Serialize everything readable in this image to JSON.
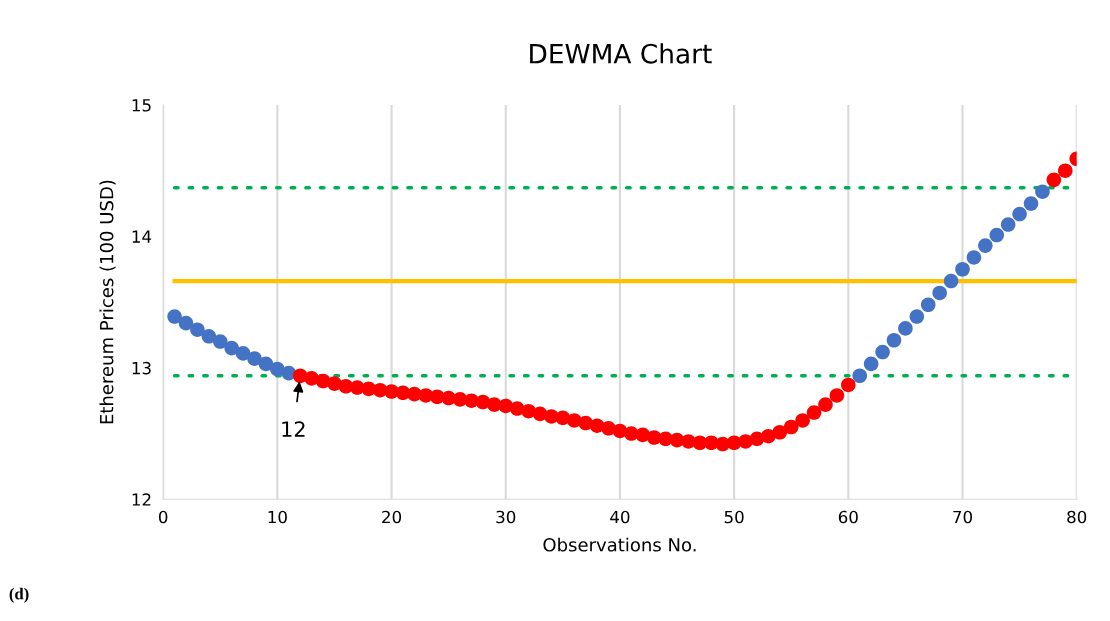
{
  "chart_data": {
    "type": "scatter",
    "title": "DEWMA Chart",
    "xlabel": "Observations No.",
    "ylabel": "Ethereum Prices (100 USD)",
    "xlim": [
      0,
      80
    ],
    "xticks": [
      0,
      10,
      20,
      30,
      40,
      50,
      60,
      70,
      80
    ],
    "ylim": [
      12,
      15
    ],
    "yticks": [
      12,
      13,
      14,
      15
    ],
    "grid": "x",
    "legend": false,
    "marker": "circle",
    "series": [
      {
        "color": "#4472c4",
        "x": [
          1,
          2,
          3,
          4,
          5,
          6,
          7,
          8,
          9,
          10,
          11
        ],
        "values": [
          13.39,
          13.34,
          13.29,
          13.24,
          13.2,
          13.15,
          13.11,
          13.07,
          13.03,
          12.99,
          12.96
        ]
      },
      {
        "color": "#ff0000",
        "x": [
          12,
          13,
          14,
          15,
          16,
          17,
          18,
          19,
          20,
          21,
          22,
          23,
          24,
          25,
          26,
          27,
          28,
          29,
          30,
          31,
          32,
          33,
          34,
          35,
          36,
          37,
          38,
          39,
          40,
          41,
          42,
          43,
          44,
          45,
          46,
          47,
          48,
          49,
          50,
          51,
          52,
          53,
          54,
          55,
          56,
          57,
          58,
          59,
          60
        ],
        "values": [
          12.94,
          12.92,
          12.9,
          12.88,
          12.86,
          12.85,
          12.84,
          12.83,
          12.82,
          12.81,
          12.8,
          12.79,
          12.78,
          12.77,
          12.76,
          12.75,
          12.74,
          12.72,
          12.71,
          12.69,
          12.67,
          12.65,
          12.63,
          12.62,
          12.6,
          12.58,
          12.56,
          12.54,
          12.52,
          12.5,
          12.49,
          12.47,
          12.46,
          12.45,
          12.44,
          12.43,
          12.43,
          12.42,
          12.43,
          12.44,
          12.46,
          12.48,
          12.51,
          12.55,
          12.6,
          12.66,
          12.72,
          12.79,
          12.87
        ]
      },
      {
        "color": "#4472c4",
        "x": [
          61,
          62,
          63,
          64,
          65,
          66,
          67,
          68,
          69,
          70,
          71,
          72,
          73,
          74,
          75,
          76,
          77
        ],
        "values": [
          12.94,
          13.03,
          13.12,
          13.21,
          13.3,
          13.39,
          13.48,
          13.57,
          13.66,
          13.75,
          13.84,
          13.93,
          14.01,
          14.09,
          14.17,
          14.25,
          14.34
        ]
      },
      {
        "color": "#ff0000",
        "x": [
          78,
          79,
          80
        ],
        "values": [
          14.43,
          14.5,
          14.59
        ]
      }
    ],
    "ref_lines": [
      {
        "axis": "y",
        "value": 14.37,
        "color": "#00b050",
        "line_style": "dotted"
      },
      {
        "axis": "y",
        "value": 13.66,
        "color": "#ffc000",
        "line_style": "solid"
      },
      {
        "axis": "y",
        "value": 12.94,
        "color": "#00b050",
        "line_style": "dotted"
      }
    ],
    "annotations": [
      {
        "text": "12",
        "x": 12,
        "y": 12.94
      },
      "(d)"
    ]
  }
}
